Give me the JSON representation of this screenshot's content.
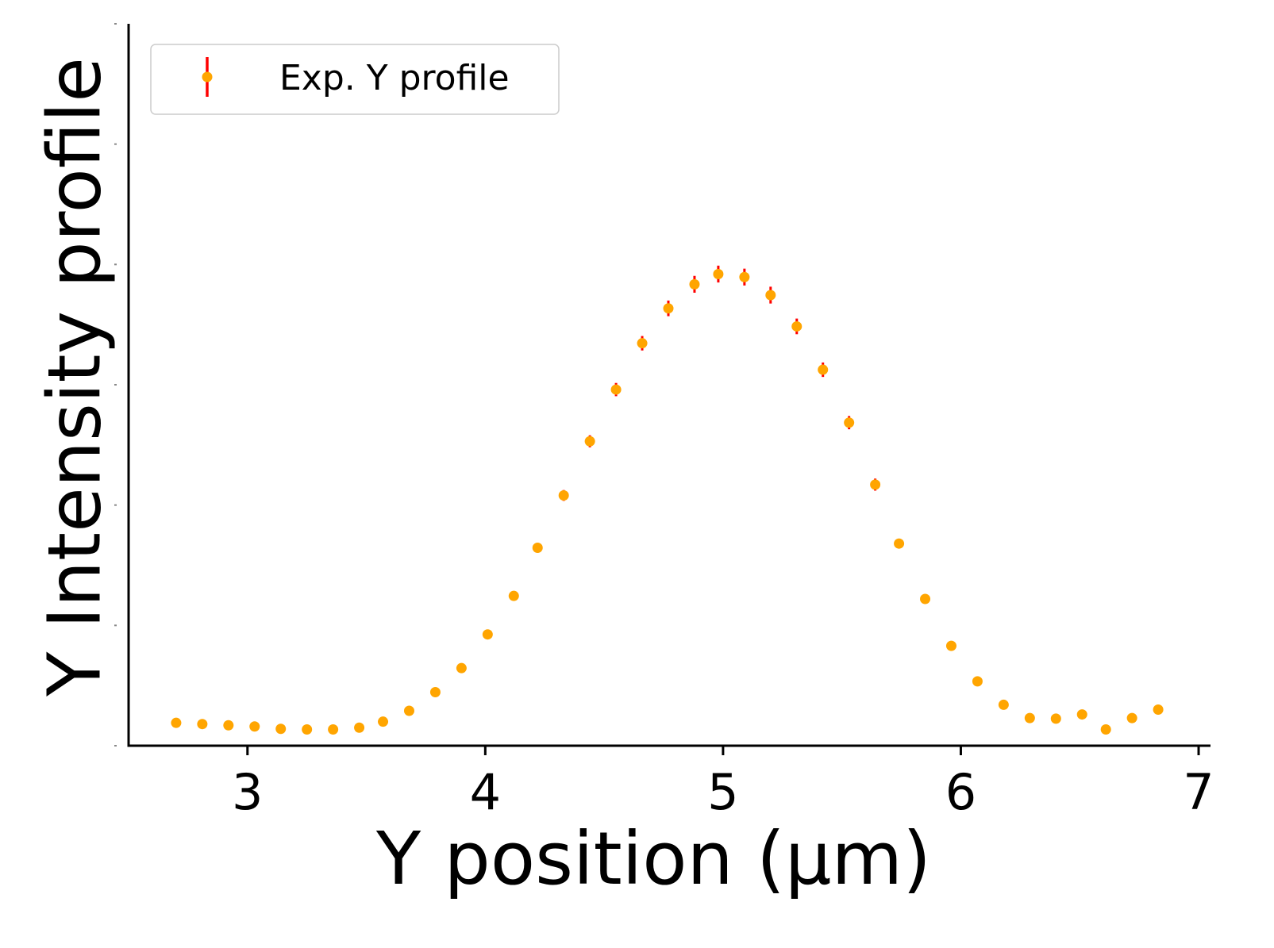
{
  "chart_data": {
    "type": "scatter",
    "title": "",
    "xlabel": "Y position (µm)",
    "ylabel": "Y Intensity profile",
    "xlim": [
      2.5,
      7.05
    ],
    "ylim": [
      0,
      1.2
    ],
    "x_ticks": [
      3,
      4,
      5,
      6,
      7
    ],
    "y_ticks": [
      0,
      0.2,
      0.4,
      0.6,
      0.8,
      1.0,
      1.2
    ],
    "y_tick_labels_visible": false,
    "grid": false,
    "legend_position": "upper-left",
    "series": [
      {
        "name": "Exp. Y profile",
        "marker_color": "#FFA500",
        "errorbar_color": "#FF0000",
        "x": [
          2.7,
          2.81,
          2.92,
          3.03,
          3.14,
          3.25,
          3.36,
          3.47,
          3.57,
          3.68,
          3.79,
          3.9,
          4.01,
          4.12,
          4.22,
          4.33,
          4.44,
          4.55,
          4.66,
          4.77,
          4.88,
          4.98,
          5.09,
          5.2,
          5.31,
          5.42,
          5.53,
          5.64,
          5.74,
          5.85,
          5.96,
          6.07,
          6.18,
          6.29,
          6.4,
          6.51,
          6.61,
          6.72,
          6.83
        ],
        "y": [
          0.038,
          0.036,
          0.034,
          0.032,
          0.028,
          0.027,
          0.027,
          0.03,
          0.04,
          0.058,
          0.089,
          0.129,
          0.185,
          0.249,
          0.329,
          0.416,
          0.506,
          0.592,
          0.669,
          0.727,
          0.767,
          0.784,
          0.779,
          0.749,
          0.697,
          0.625,
          0.537,
          0.434,
          0.336,
          0.244,
          0.166,
          0.107,
          0.068,
          0.046,
          0.045,
          0.052,
          0.027,
          0.046,
          0.06
        ],
        "yerr": [
          0.002,
          0.002,
          0.002,
          0.002,
          0.002,
          0.002,
          0.002,
          0.002,
          0.002,
          0.003,
          0.003,
          0.004,
          0.005,
          0.006,
          0.008,
          0.009,
          0.01,
          0.011,
          0.012,
          0.013,
          0.014,
          0.014,
          0.014,
          0.014,
          0.013,
          0.012,
          0.011,
          0.01,
          0.008,
          0.007,
          0.005,
          0.004,
          0.003,
          0.003,
          0.003,
          0.003,
          0.002,
          0.003,
          0.003
        ]
      }
    ]
  }
}
